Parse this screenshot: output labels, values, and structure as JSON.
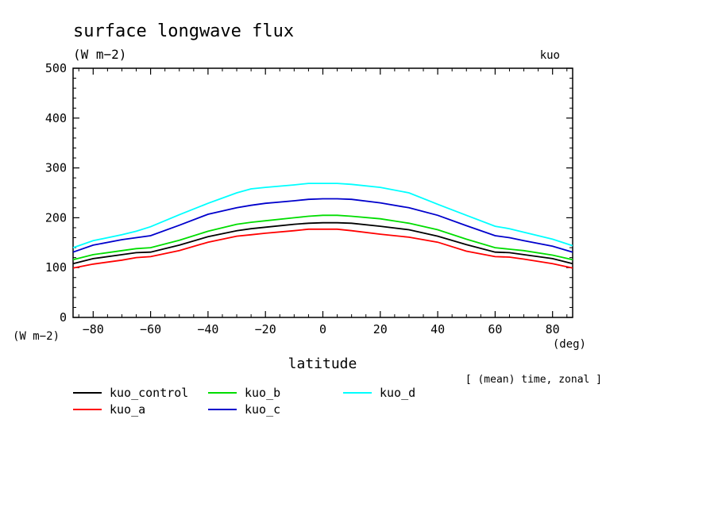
{
  "chart_data": {
    "type": "line",
    "title": "surface longwave flux",
    "title_units": "(W m−2)",
    "corner_label": "kuo",
    "xlabel": "latitude",
    "xunit": "(deg)",
    "yunit": "(W m−2)",
    "note": "[ (mean) time, zonal ]",
    "xlim": [
      -87,
      87
    ],
    "ylim": [
      0,
      500
    ],
    "x_ticks": [
      -80,
      -60,
      -40,
      -20,
      0,
      20,
      40,
      60,
      80
    ],
    "x_tick_labels": [
      "−80",
      "−60",
      "−40",
      "−20",
      "0",
      "20",
      "40",
      "60",
      "80"
    ],
    "y_ticks": [
      0,
      100,
      200,
      300,
      400,
      500
    ],
    "y_tick_labels": [
      "0",
      "100",
      "200",
      "300",
      "400",
      "500"
    ],
    "legend_position": "bottom",
    "x": [
      -87,
      -80,
      -70,
      -65,
      -60,
      -50,
      -40,
      -30,
      -25,
      -20,
      -10,
      -5,
      0,
      5,
      10,
      20,
      30,
      40,
      50,
      60,
      65,
      70,
      80,
      87
    ],
    "series": [
      {
        "name": "kuo_control",
        "color": "#000000",
        "values": [
          108,
          118,
          126,
          130,
          131,
          145,
          162,
          174,
          178,
          181,
          187,
          189,
          190,
          190,
          189,
          183,
          176,
          163,
          146,
          131,
          130,
          126,
          118,
          108
        ]
      },
      {
        "name": "kuo_a",
        "color": "#ff0000",
        "values": [
          99,
          107,
          115,
          120,
          122,
          134,
          151,
          163,
          166,
          169,
          174,
          177,
          177,
          177,
          174,
          167,
          161,
          151,
          133,
          122,
          121,
          117,
          108,
          99
        ]
      },
      {
        "name": "kuo_b",
        "color": "#00dd00",
        "values": [
          116,
          126,
          134,
          138,
          140,
          155,
          173,
          187,
          191,
          194,
          200,
          203,
          205,
          205,
          203,
          198,
          189,
          176,
          157,
          140,
          137,
          134,
          125,
          116
        ]
      },
      {
        "name": "kuo_c",
        "color": "#0000cc",
        "values": [
          131,
          145,
          156,
          160,
          164,
          185,
          207,
          220,
          225,
          229,
          234,
          237,
          238,
          238,
          237,
          230,
          220,
          205,
          184,
          164,
          160,
          154,
          143,
          131
        ]
      },
      {
        "name": "kuo_d",
        "color": "#00ffff",
        "values": [
          140,
          154,
          166,
          173,
          182,
          206,
          229,
          250,
          258,
          261,
          266,
          269,
          269,
          269,
          267,
          261,
          250,
          227,
          205,
          183,
          178,
          171,
          157,
          144
        ]
      }
    ]
  }
}
